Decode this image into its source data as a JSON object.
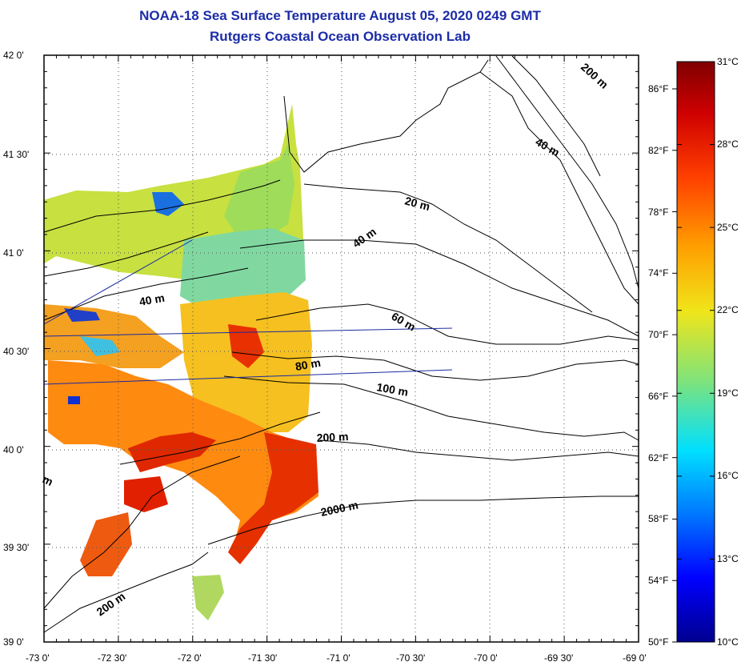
{
  "title": {
    "line1": "NOAA-18 Sea Surface Temperature August 05, 2020 0249 GMT",
    "line2": "Rutgers Coastal Ocean Observation Lab"
  },
  "map": {
    "lat_labels": [
      "42 0'",
      "41 30'",
      "41 0'",
      "40 30'",
      "40 0'",
      "39 30'",
      "39 0'"
    ],
    "lon_labels": [
      "-73 0'",
      "-72 30'",
      "-72 0'",
      "-71 30'",
      "-71 0'",
      "-70 30'",
      "-70 0'",
      "-69 30'",
      "-69 0'"
    ],
    "contours": [
      "20 m",
      "40 m",
      "40 m",
      "60 m",
      "80 m",
      "100 m",
      "200 m",
      "2000 m",
      "200 m",
      "200 m",
      "m"
    ],
    "grid": true
  },
  "colorbar": {
    "c_labels": [
      "31°C",
      "28°C",
      "25°C",
      "22°C",
      "19°C",
      "16°C",
      "13°C",
      "10°C"
    ],
    "f_labels": [
      "86°F",
      "82°F",
      "78°F",
      "74°F",
      "70°F",
      "66°F",
      "62°F",
      "58°F",
      "54°F",
      "50°F"
    ],
    "colors": [
      "#7f0000",
      "#d40000",
      "#ff4000",
      "#ff9a00",
      "#f5e51a",
      "#9be35a",
      "#2fd9d0",
      "#1a8cff",
      "#0022ff",
      "#00008f"
    ]
  }
}
